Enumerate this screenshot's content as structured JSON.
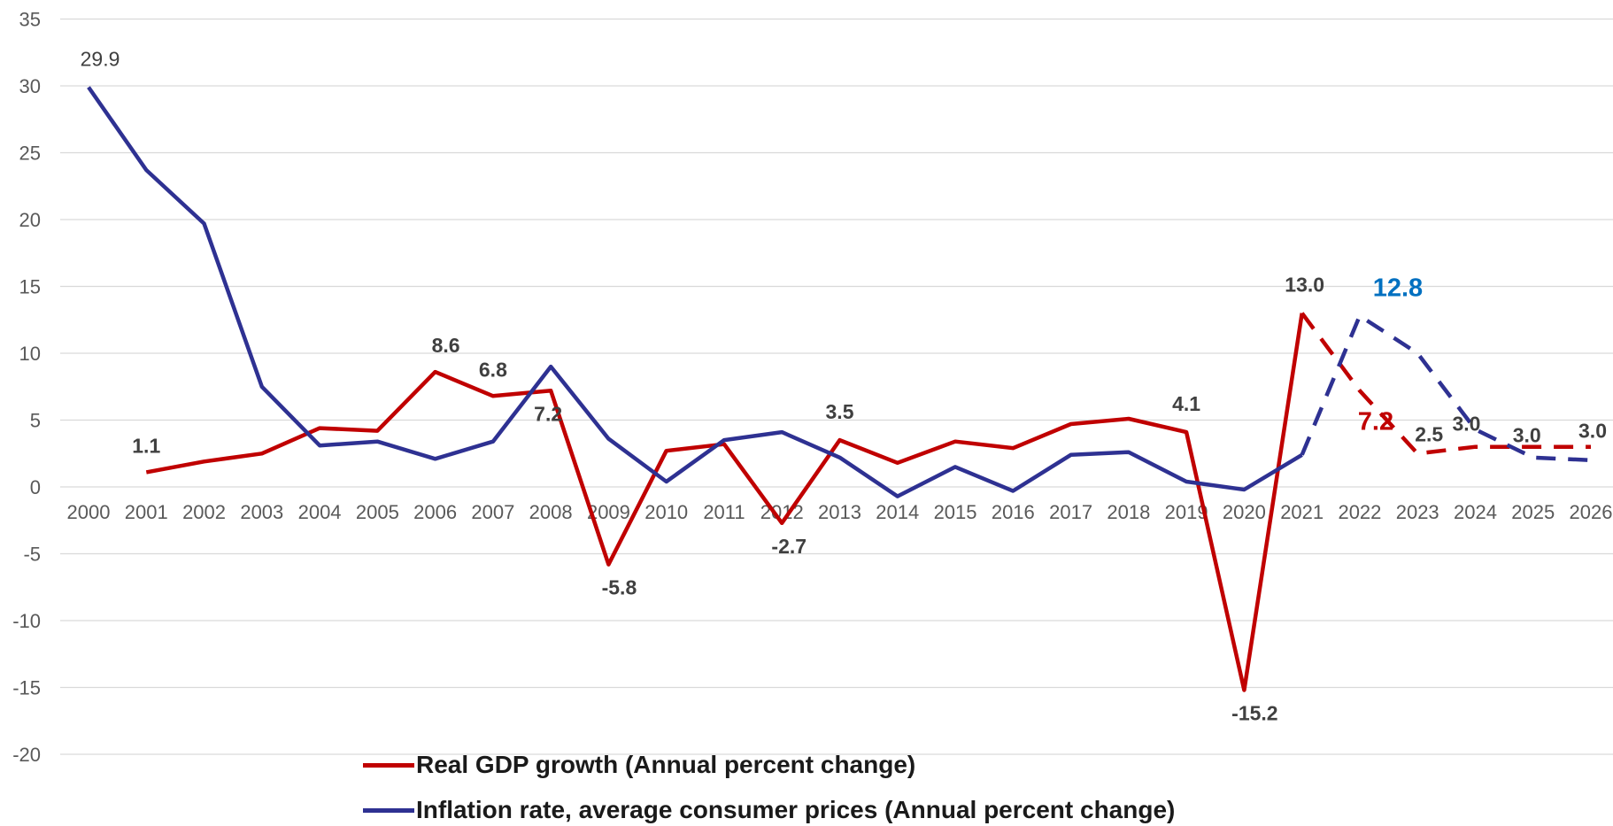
{
  "chart_data": {
    "type": "line",
    "x": [
      "2000",
      "2001",
      "2002",
      "2003",
      "2004",
      "2005",
      "2006",
      "2007",
      "2008",
      "2009",
      "2010",
      "2011",
      "2012",
      "2013",
      "2014",
      "2015",
      "2016",
      "2017",
      "2018",
      "2019",
      "2020",
      "2021",
      "2022",
      "2023",
      "2024",
      "2025",
      "2026"
    ],
    "ylim": [
      -20,
      35
    ],
    "yticks": [
      -20,
      -15,
      -10,
      -5,
      0,
      5,
      10,
      15,
      20,
      25,
      30,
      35
    ],
    "grid": true,
    "legend_position": "bottom",
    "series": [
      {
        "name": "Real GDP growth (Annual percent change)",
        "color": "#C00000",
        "values": [
          null,
          1.1,
          1.9,
          2.5,
          4.4,
          4.2,
          8.6,
          6.8,
          7.2,
          -5.8,
          2.7,
          3.2,
          -2.7,
          3.5,
          1.8,
          3.4,
          2.9,
          4.7,
          5.1,
          4.1,
          -15.2,
          13.0,
          7.2,
          2.5,
          3.0,
          3.0,
          3.0
        ],
        "dashed_from": "2021"
      },
      {
        "name": "Inflation rate, average consumer prices (Annual percent change)",
        "color": "#2E3192",
        "values": [
          29.9,
          23.7,
          19.7,
          7.5,
          3.1,
          3.4,
          2.1,
          3.4,
          9.0,
          3.6,
          0.4,
          3.5,
          4.1,
          2.2,
          -0.7,
          1.5,
          -0.3,
          2.4,
          2.6,
          0.4,
          -0.2,
          2.4,
          12.8,
          10.0,
          4.3,
          2.2,
          2.0
        ],
        "dashed_from": "2021"
      }
    ],
    "annotations": [
      {
        "text": "29.9",
        "series": 1,
        "x": "2000",
        "color": "#404040",
        "bold": false
      },
      {
        "text": "1.1",
        "series": 0,
        "x": "2001",
        "color": "#404040",
        "bold": true
      },
      {
        "text": "8.6",
        "series": 0,
        "x": "2006",
        "color": "#404040",
        "bold": true
      },
      {
        "text": "6.8",
        "series": 0,
        "x": "2007",
        "color": "#404040",
        "bold": true
      },
      {
        "text": "7.2",
        "series": 0,
        "x": "2008",
        "color": "#404040",
        "bold": true
      },
      {
        "text": "-5.8",
        "series": 0,
        "x": "2009",
        "color": "#404040",
        "bold": true
      },
      {
        "text": "-2.7",
        "series": 0,
        "x": "2012",
        "color": "#404040",
        "bold": true
      },
      {
        "text": "3.5",
        "series": 0,
        "x": "2013",
        "color": "#404040",
        "bold": true
      },
      {
        "text": "4.1",
        "series": 0,
        "x": "2019",
        "color": "#404040",
        "bold": true
      },
      {
        "text": "-15.2",
        "series": 0,
        "x": "2020",
        "color": "#404040",
        "bold": true
      },
      {
        "text": "13.0",
        "series": 0,
        "x": "2021",
        "color": "#404040",
        "bold": true
      },
      {
        "text": "12.8",
        "series": 1,
        "x": "2022",
        "color": "#0070C0",
        "bold": true,
        "large": true
      },
      {
        "text": "7.2",
        "series": 0,
        "x": "2022",
        "color": "#C00000",
        "bold": true,
        "large": true
      },
      {
        "text": "2.5",
        "series": 0,
        "x": "2023",
        "color": "#404040",
        "bold": true
      },
      {
        "text": "3.0",
        "series": 0,
        "x": "2024",
        "color": "#404040",
        "bold": true
      },
      {
        "text": "3.0",
        "series": 0,
        "x": "2025",
        "color": "#404040",
        "bold": true
      },
      {
        "text": "3.0",
        "series": 0,
        "x": "2026",
        "color": "#404040",
        "bold": true
      }
    ]
  },
  "legend": {
    "gdp_label": "Real GDP growth (Annual percent change)",
    "gdp_color": "#C00000",
    "inflation_label": "Inflation rate, average consumer prices (Annual percent change)",
    "inflation_color": "#2E3192"
  }
}
